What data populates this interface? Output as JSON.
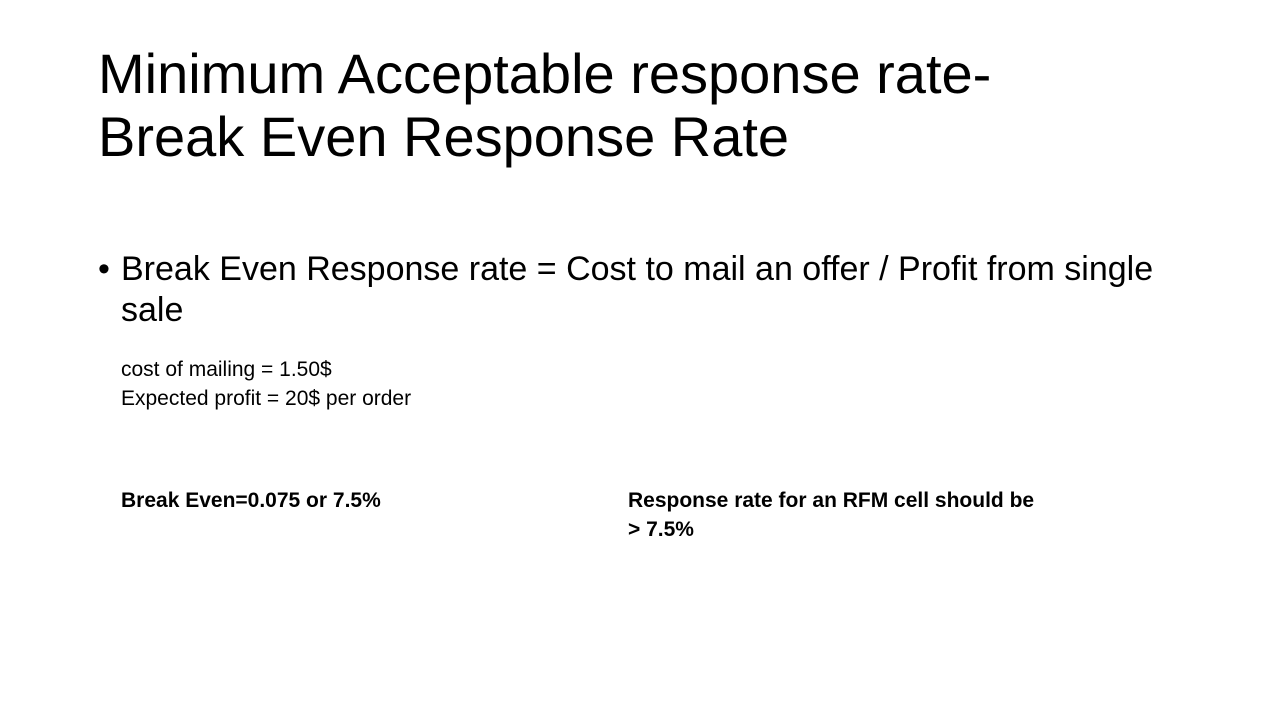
{
  "slide": {
    "title_lines": [
      "Minimum Acceptable response rate-",
      "Break Even Response Rate"
    ],
    "bullet_marker": "•",
    "bullet_text": "Break Even Response rate = Cost to mail an offer / Profit from single sale",
    "details": [
      "cost of mailing = 1.50$",
      "Expected profit = 20$ per order"
    ],
    "break_even": "Break Even=0.075 or 7.5%",
    "conclusion_lines": [
      "Response rate for an RFM cell should be",
      "> 7.5%"
    ]
  }
}
